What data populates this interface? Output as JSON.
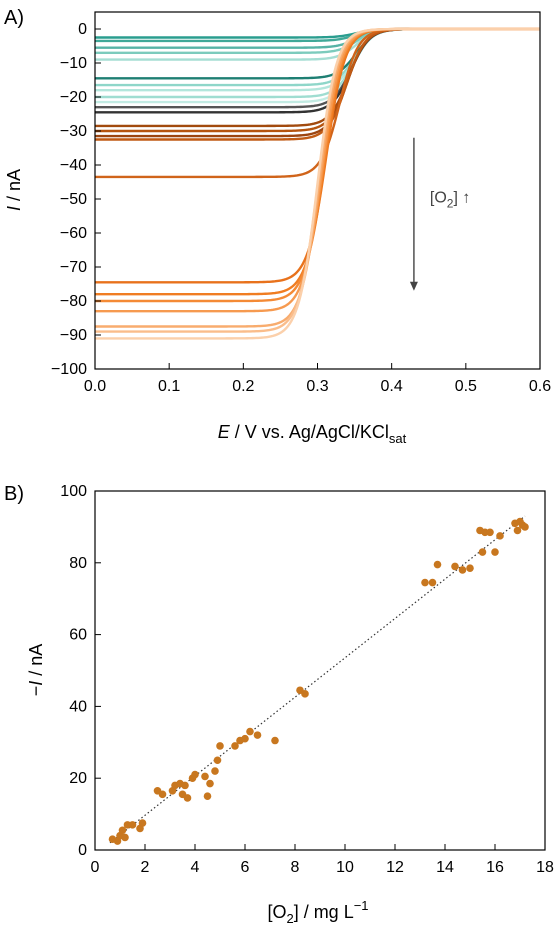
{
  "figure": {
    "panels": [
      "A)",
      "B)"
    ]
  },
  "chart_data": [
    {
      "type": "line",
      "panel": "A)",
      "xlabel": {
        "italic": "E",
        "rest": " / V vs. Ag/AgCl/KCl",
        "sub": "sat"
      },
      "ylabel": {
        "italic": "I",
        "rest": " / nA"
      },
      "xlim": [
        0.0,
        0.6
      ],
      "ylim": [
        -100,
        5
      ],
      "xticks": [
        "0.0",
        "0.1",
        "0.2",
        "0.3",
        "0.4",
        "0.5",
        "0.6"
      ],
      "xtick_values": [
        0.0,
        0.1,
        0.2,
        0.3,
        0.4,
        0.5,
        0.6
      ],
      "yticks": [
        "0",
        "−10",
        "−20",
        "−30",
        "−40",
        "−50",
        "−60",
        "−70",
        "−80",
        "−90",
        "−100"
      ],
      "ytick_values": [
        0,
        -10,
        -20,
        -30,
        -40,
        -50,
        -60,
        -70,
        -80,
        -90,
        -100
      ],
      "grid": false,
      "legend": "none",
      "annotation": {
        "text": "[O",
        "sub": "2",
        "after": "] ↑",
        "arrow": "down",
        "arrow_x": 0.43,
        "arrow_from": -32,
        "arrow_to": -77
      },
      "series": [
        {
          "plateau": -2.5,
          "half_wave_potential": 0.352,
          "color": "#2a9d8f"
        },
        {
          "plateau": -3.5,
          "half_wave_potential": 0.352,
          "color": "#40a898"
        },
        {
          "plateau": -5.5,
          "half_wave_potential": 0.353,
          "color": "#57b3a6"
        },
        {
          "plateau": -7.0,
          "half_wave_potential": 0.353,
          "color": "#7ccbbd"
        },
        {
          "plateau": -9.0,
          "half_wave_potential": 0.353,
          "color": "#a6ded4"
        },
        {
          "plateau": -14.5,
          "half_wave_potential": 0.352,
          "color": "#1e7f73"
        },
        {
          "plateau": -16.5,
          "half_wave_potential": 0.351,
          "color": "#8ed6c9"
        },
        {
          "plateau": -18.0,
          "half_wave_potential": 0.35,
          "color": "#b3e6dc"
        },
        {
          "plateau": -20.0,
          "half_wave_potential": 0.349,
          "color": "#9fddd1"
        },
        {
          "plateau": -21.5,
          "half_wave_potential": 0.348,
          "color": "#c2ebe3"
        },
        {
          "plateau": -23.0,
          "half_wave_potential": 0.346,
          "color": "#555555"
        },
        {
          "plateau": -24.5,
          "half_wave_potential": 0.345,
          "color": "#333333"
        },
        {
          "plateau": -28.5,
          "half_wave_potential": 0.342,
          "color": "#a24a0e"
        },
        {
          "plateau": -30.0,
          "half_wave_potential": 0.341,
          "color": "#b5540f"
        },
        {
          "plateau": -31.5,
          "half_wave_potential": 0.34,
          "color": "#9c4510"
        },
        {
          "plateau": -32.5,
          "half_wave_potential": 0.339,
          "color": "#c05a14"
        },
        {
          "plateau": -43.5,
          "half_wave_potential": 0.33,
          "color": "#d0641a"
        },
        {
          "plateau": -74.5,
          "half_wave_potential": 0.312,
          "color": "#e8721c"
        },
        {
          "plateau": -78.0,
          "half_wave_potential": 0.31,
          "color": "#f07d22"
        },
        {
          "plateau": -80.0,
          "half_wave_potential": 0.308,
          "color": "#f48a35"
        },
        {
          "plateau": -83.0,
          "half_wave_potential": 0.306,
          "color": "#f69a50"
        },
        {
          "plateau": -87.5,
          "half_wave_potential": 0.303,
          "color": "#f8ac6e"
        },
        {
          "plateau": -89.0,
          "half_wave_potential": 0.301,
          "color": "#fabd8b"
        },
        {
          "plateau": -91.0,
          "half_wave_potential": 0.3,
          "color": "#fbd0ab"
        }
      ]
    },
    {
      "type": "scatter",
      "panel": "B)",
      "xlabel": {
        "pre": "[O",
        "sub": "2",
        "post": "] / mg L",
        "sup": "−1"
      },
      "ylabel": {
        "italic": "I",
        "pre": "−",
        "rest": " / nA"
      },
      "xlim": [
        0,
        18
      ],
      "ylim": [
        0,
        100
      ],
      "xticks": [
        "0",
        "2",
        "4",
        "6",
        "8",
        "10",
        "12",
        "14",
        "16",
        "18"
      ],
      "xtick_values": [
        0,
        2,
        4,
        6,
        8,
        10,
        12,
        14,
        16,
        18
      ],
      "yticks": [
        "0",
        "20",
        "40",
        "60",
        "80",
        "100"
      ],
      "ytick_values": [
        0,
        20,
        40,
        60,
        80,
        100
      ],
      "grid": false,
      "legend": "none",
      "marker_color": "#c8771f",
      "fit_line": {
        "style": "dotted",
        "color": "#333333",
        "x": [
          0.6,
          17.2
        ],
        "y": [
          2.0,
          93.0
        ]
      },
      "points": [
        {
          "x": 0.7,
          "y": 3.0
        },
        {
          "x": 0.9,
          "y": 2.5
        },
        {
          "x": 1.0,
          "y": 4.0
        },
        {
          "x": 1.1,
          "y": 5.5
        },
        {
          "x": 1.2,
          "y": 3.5
        },
        {
          "x": 1.3,
          "y": 7.0
        },
        {
          "x": 1.5,
          "y": 7.0
        },
        {
          "x": 1.8,
          "y": 6.0
        },
        {
          "x": 1.9,
          "y": 7.5
        },
        {
          "x": 2.5,
          "y": 16.5
        },
        {
          "x": 2.7,
          "y": 15.5
        },
        {
          "x": 3.1,
          "y": 16.5
        },
        {
          "x": 3.2,
          "y": 18.0
        },
        {
          "x": 3.4,
          "y": 18.5
        },
        {
          "x": 3.5,
          "y": 15.5
        },
        {
          "x": 3.6,
          "y": 18.0
        },
        {
          "x": 3.7,
          "y": 14.5
        },
        {
          "x": 3.9,
          "y": 20.0
        },
        {
          "x": 4.0,
          "y": 21.0
        },
        {
          "x": 4.4,
          "y": 20.5
        },
        {
          "x": 4.5,
          "y": 15.0
        },
        {
          "x": 4.6,
          "y": 18.5
        },
        {
          "x": 4.8,
          "y": 22.0
        },
        {
          "x": 4.9,
          "y": 25.0
        },
        {
          "x": 5.0,
          "y": 29.0
        },
        {
          "x": 5.6,
          "y": 29.0
        },
        {
          "x": 5.8,
          "y": 30.5
        },
        {
          "x": 6.0,
          "y": 31.0
        },
        {
          "x": 6.2,
          "y": 33.0
        },
        {
          "x": 6.5,
          "y": 32.0
        },
        {
          "x": 7.2,
          "y": 30.5
        },
        {
          "x": 8.2,
          "y": 44.5
        },
        {
          "x": 8.4,
          "y": 43.5
        },
        {
          "x": 13.2,
          "y": 74.5
        },
        {
          "x": 13.5,
          "y": 74.5
        },
        {
          "x": 13.7,
          "y": 79.5
        },
        {
          "x": 14.4,
          "y": 79.0
        },
        {
          "x": 14.7,
          "y": 78.0
        },
        {
          "x": 15.0,
          "y": 78.5
        },
        {
          "x": 15.5,
          "y": 83.0
        },
        {
          "x": 15.6,
          "y": 88.5
        },
        {
          "x": 15.8,
          "y": 88.5
        },
        {
          "x": 16.0,
          "y": 83.0
        },
        {
          "x": 16.2,
          "y": 87.5
        },
        {
          "x": 16.8,
          "y": 91.0
        },
        {
          "x": 17.0,
          "y": 91.5
        },
        {
          "x": 17.1,
          "y": 90.5
        },
        {
          "x": 17.2,
          "y": 90.0
        },
        {
          "x": 16.9,
          "y": 89.0
        },
        {
          "x": 15.4,
          "y": 89.0
        }
      ]
    }
  ]
}
